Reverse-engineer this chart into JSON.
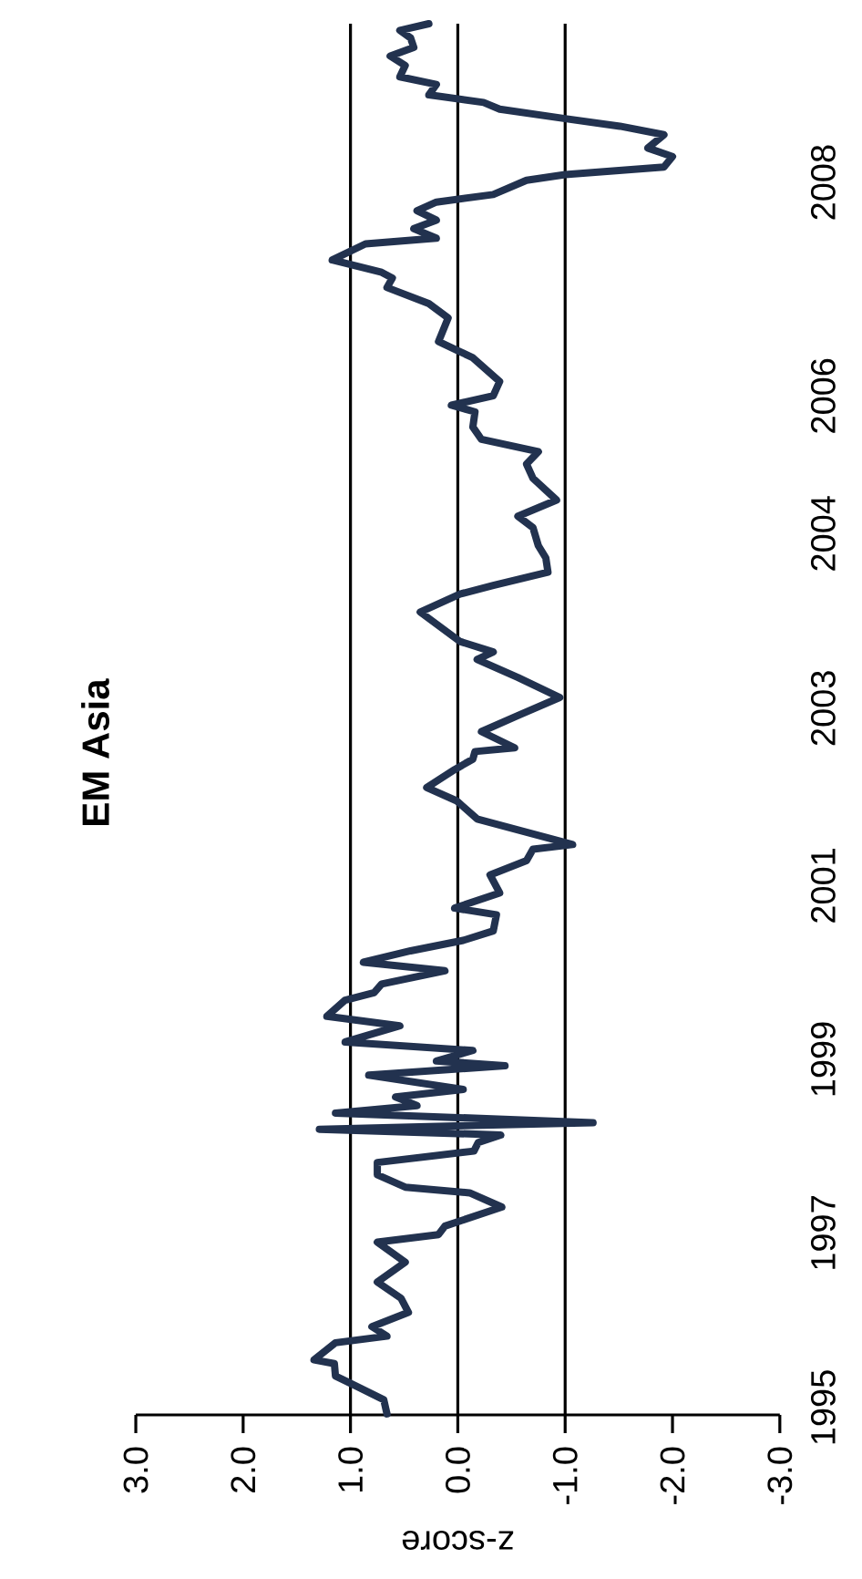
{
  "chart_data": {
    "type": "line",
    "title": "EM Asia",
    "xlabel": "z-score",
    "x": [
      0.66,
      0.69,
      1.03,
      1.14,
      1.15,
      1.34,
      1.14,
      0.66,
      0.8,
      0.46,
      0.53,
      0.75,
      0.49,
      0.75,
      0.18,
      0.12,
      -0.41,
      -0.11,
      0.49,
      0.75,
      0.75,
      -0.15,
      -0.19,
      -0.4,
      1.29,
      -1.26,
      1.14,
      0.38,
      0.58,
      -0.05,
      0.83,
      -0.44,
      0.2,
      -0.14,
      1.05,
      0.54,
      1.22,
      1.05,
      0.78,
      0.71,
      0.12,
      0.88,
      0.44,
      -0.05,
      -0.33,
      -0.36,
      0.03,
      -0.39,
      -0.3,
      -0.64,
      -0.7,
      -1.07,
      -0.18,
      0.01,
      0.29,
      0.03,
      -0.14,
      -0.16,
      -0.53,
      -0.22,
      -0.56,
      -0.95,
      -0.56,
      -0.18,
      -0.33,
      -0.02,
      0.35,
      -0.02,
      -0.33,
      -0.84,
      -0.82,
      -0.75,
      -0.7,
      -0.56,
      -0.92,
      -0.7,
      -0.64,
      -0.75,
      -0.22,
      -0.14,
      -0.16,
      0.06,
      -0.33,
      -0.39,
      -0.14,
      0.01,
      0.18,
      0.09,
      0.27,
      0.66,
      0.61,
      0.71,
      1.17,
      0.86,
      0.2,
      0.41,
      0.2,
      0.38,
      0.2,
      -0.33,
      -0.64,
      -1.0,
      -1.92,
      -2.0,
      -1.77,
      -1.92,
      -1.51,
      -1.0,
      -0.39,
      -0.24,
      0.27,
      0.2,
      0.54,
      0.49,
      0.63,
      0.41,
      0.44,
      0.54,
      0.27
    ],
    "series": [
      {
        "color": "#22324f",
        "values": [
          1995.24,
          1995.39,
          1995.58,
          1995.64,
          1995.77,
          1995.81,
          1995.99,
          1996.06,
          1996.16,
          1996.31,
          1996.46,
          1996.63,
          1996.84,
          1997.05,
          1997.13,
          1997.22,
          1997.42,
          1997.57,
          1997.63,
          1997.76,
          1997.89,
          1998.01,
          1998.1,
          1998.18,
          1998.24,
          1998.31,
          1998.41,
          1998.49,
          1998.58,
          1998.66,
          1998.81,
          1998.91,
          1998.96,
          1999.07,
          1999.16,
          1999.33,
          1999.43,
          1999.6,
          1999.68,
          1999.77,
          1999.91,
          2000.0,
          2000.12,
          2000.23,
          2000.33,
          2000.5,
          2000.57,
          2000.73,
          2000.92,
          2001.07,
          2001.19,
          2001.24,
          2001.51,
          2001.7,
          2001.84,
          2002.03,
          2002.14,
          2002.22,
          2002.26,
          2002.43,
          2002.6,
          2002.79,
          2003.0,
          2003.19,
          2003.27,
          2003.38,
          2003.69,
          2003.88,
          2003.97,
          2004.11,
          2004.26,
          2004.39,
          2004.58,
          2004.7,
          2004.87,
          2005.1,
          2005.25,
          2005.38,
          2005.51,
          2005.64,
          2005.8,
          2005.87,
          2005.97,
          2006.12,
          2006.37,
          2006.45,
          2006.54,
          2006.79,
          2006.94,
          2007.11,
          2007.21,
          2007.27,
          2007.4,
          2007.57,
          2007.63,
          2007.73,
          2007.82,
          2007.92,
          2008.01,
          2008.09,
          2008.24,
          2008.3,
          2008.38,
          2008.49,
          2008.58,
          2008.72,
          2008.81,
          2008.89,
          2008.99,
          2009.06,
          2009.14,
          2009.25,
          2009.33,
          2009.45,
          2009.55,
          2009.64,
          2009.74,
          2009.82,
          2009.89
        ]
      }
    ],
    "ylim": [
      1995.23,
      2009.89
    ],
    "yticks": [
      {
        "value": 1995.23,
        "label": "1995"
      },
      {
        "value": 1997.07,
        "label": "1997"
      },
      {
        "value": 1998.9,
        "label": "1999"
      },
      {
        "value": 2000.73,
        "label": "2001"
      },
      {
        "value": 2002.6,
        "label": "2003"
      },
      {
        "value": 2004.44,
        "label": "2004"
      },
      {
        "value": 2005.89,
        "label": "2006"
      },
      {
        "value": 2008.14,
        "label": "2008"
      }
    ],
    "xlim": [
      3,
      -3
    ],
    "xticks": [
      {
        "value": 3,
        "label": "3.0"
      },
      {
        "value": 2,
        "label": "2.0"
      },
      {
        "value": 1,
        "label": "1.0"
      },
      {
        "value": 0,
        "label": "0.0"
      },
      {
        "value": -1,
        "label": "-1.0"
      },
      {
        "value": -2,
        "label": "-2.0"
      },
      {
        "value": -3,
        "label": "-3.0"
      }
    ],
    "ref_lines": [
      {
        "axis": "x",
        "value": 1,
        "color": "#000000"
      },
      {
        "axis": "x",
        "value": 0,
        "color": "#000000"
      },
      {
        "axis": "x",
        "value": -1,
        "color": "#000000"
      }
    ],
    "line_style": "solid",
    "grid": false
  }
}
